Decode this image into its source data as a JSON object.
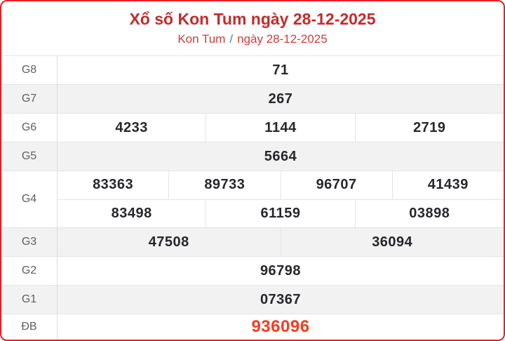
{
  "header": {
    "title": "Xổ số Kon Tum ngày 28-12-2025",
    "breadcrumb": {
      "left": "Kon Tum",
      "separator": "/",
      "right": "ngày 28-12-2025"
    }
  },
  "table": {
    "rows": [
      {
        "label": "G8",
        "lines": [
          [
            "71"
          ]
        ]
      },
      {
        "label": "G7",
        "lines": [
          [
            "267"
          ]
        ]
      },
      {
        "label": "G6",
        "lines": [
          [
            "4233",
            "1144",
            "2719"
          ]
        ]
      },
      {
        "label": "G5",
        "lines": [
          [
            "5664"
          ]
        ]
      },
      {
        "label": "G4",
        "lines": [
          [
            "83363",
            "89733",
            "96707",
            "41439"
          ],
          [
            "83498",
            "61159",
            "03898"
          ]
        ]
      },
      {
        "label": "G3",
        "lines": [
          [
            "47508",
            "36094"
          ]
        ]
      },
      {
        "label": "G2",
        "lines": [
          [
            "96798"
          ]
        ]
      },
      {
        "label": "G1",
        "lines": [
          [
            "07367"
          ]
        ]
      },
      {
        "label": "ĐB",
        "lines": [
          [
            "936096"
          ]
        ]
      }
    ]
  },
  "colors": {
    "card_border_red": "#ed1c24",
    "title_red": "#c62a2a",
    "subtitle_red": "#d43a38",
    "separator_blue": "#3c7dc1",
    "special_prize_red": "#fb3a1e",
    "row_alt_background": "#f2f2f3",
    "number_dark": "#26272b",
    "label_gray": "#5e5e62"
  }
}
